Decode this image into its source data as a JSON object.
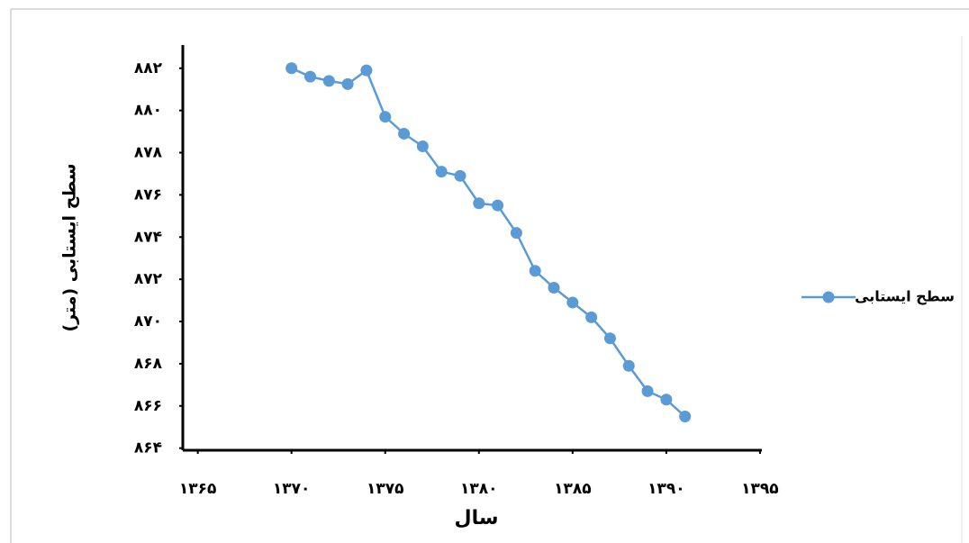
{
  "chart_data": {
    "type": "line",
    "x_label": "سال",
    "y_label": "سطح ایستابی (متر)",
    "x": [
      1370,
      1371,
      1372,
      1373,
      1374,
      1375,
      1376,
      1377,
      1378,
      1379,
      1380,
      1381,
      1382,
      1383,
      1384,
      1385,
      1386,
      1387,
      1388,
      1389,
      1390,
      1391
    ],
    "series": [
      {
        "name": "سطح ایستابی",
        "color": "#5b9bd5",
        "values": [
          882.0,
          881.6,
          881.4,
          881.25,
          881.9,
          879.7,
          878.9,
          878.3,
          877.1,
          876.9,
          875.6,
          875.5,
          874.2,
          872.4,
          871.6,
          870.9,
          870.2,
          869.2,
          867.9,
          866.7,
          866.3,
          865.5
        ]
      }
    ],
    "xlim": [
      1364.2,
      1395.1
    ],
    "ylim": [
      863.9,
      883.1
    ],
    "xticks": [
      {
        "value": 1365,
        "label": "۱۳۶۵"
      },
      {
        "value": 1370,
        "label": "۱۳۷۰"
      },
      {
        "value": 1375,
        "label": "۱۳۷۵"
      },
      {
        "value": 1380,
        "label": "۱۳۸۰"
      },
      {
        "value": 1385,
        "label": "۱۳۸۵"
      },
      {
        "value": 1390,
        "label": "۱۳۹۰"
      },
      {
        "value": 1395,
        "label": "۱۳۹۵"
      }
    ],
    "yticks": [
      {
        "value": 864,
        "label": "۸۶۴"
      },
      {
        "value": 866,
        "label": "۸۶۶"
      },
      {
        "value": 868,
        "label": "۸۶۸"
      },
      {
        "value": 870,
        "label": "۸۷۰"
      },
      {
        "value": 872,
        "label": "۸۷۲"
      },
      {
        "value": 874,
        "label": "۸۷۴"
      },
      {
        "value": 876,
        "label": "۸۷۶"
      },
      {
        "value": 878,
        "label": "۸۷۸"
      },
      {
        "value": 880,
        "label": "۸۸۰"
      },
      {
        "value": 882,
        "label": "۸۸۲"
      }
    ],
    "grid": false,
    "legend": "right"
  }
}
